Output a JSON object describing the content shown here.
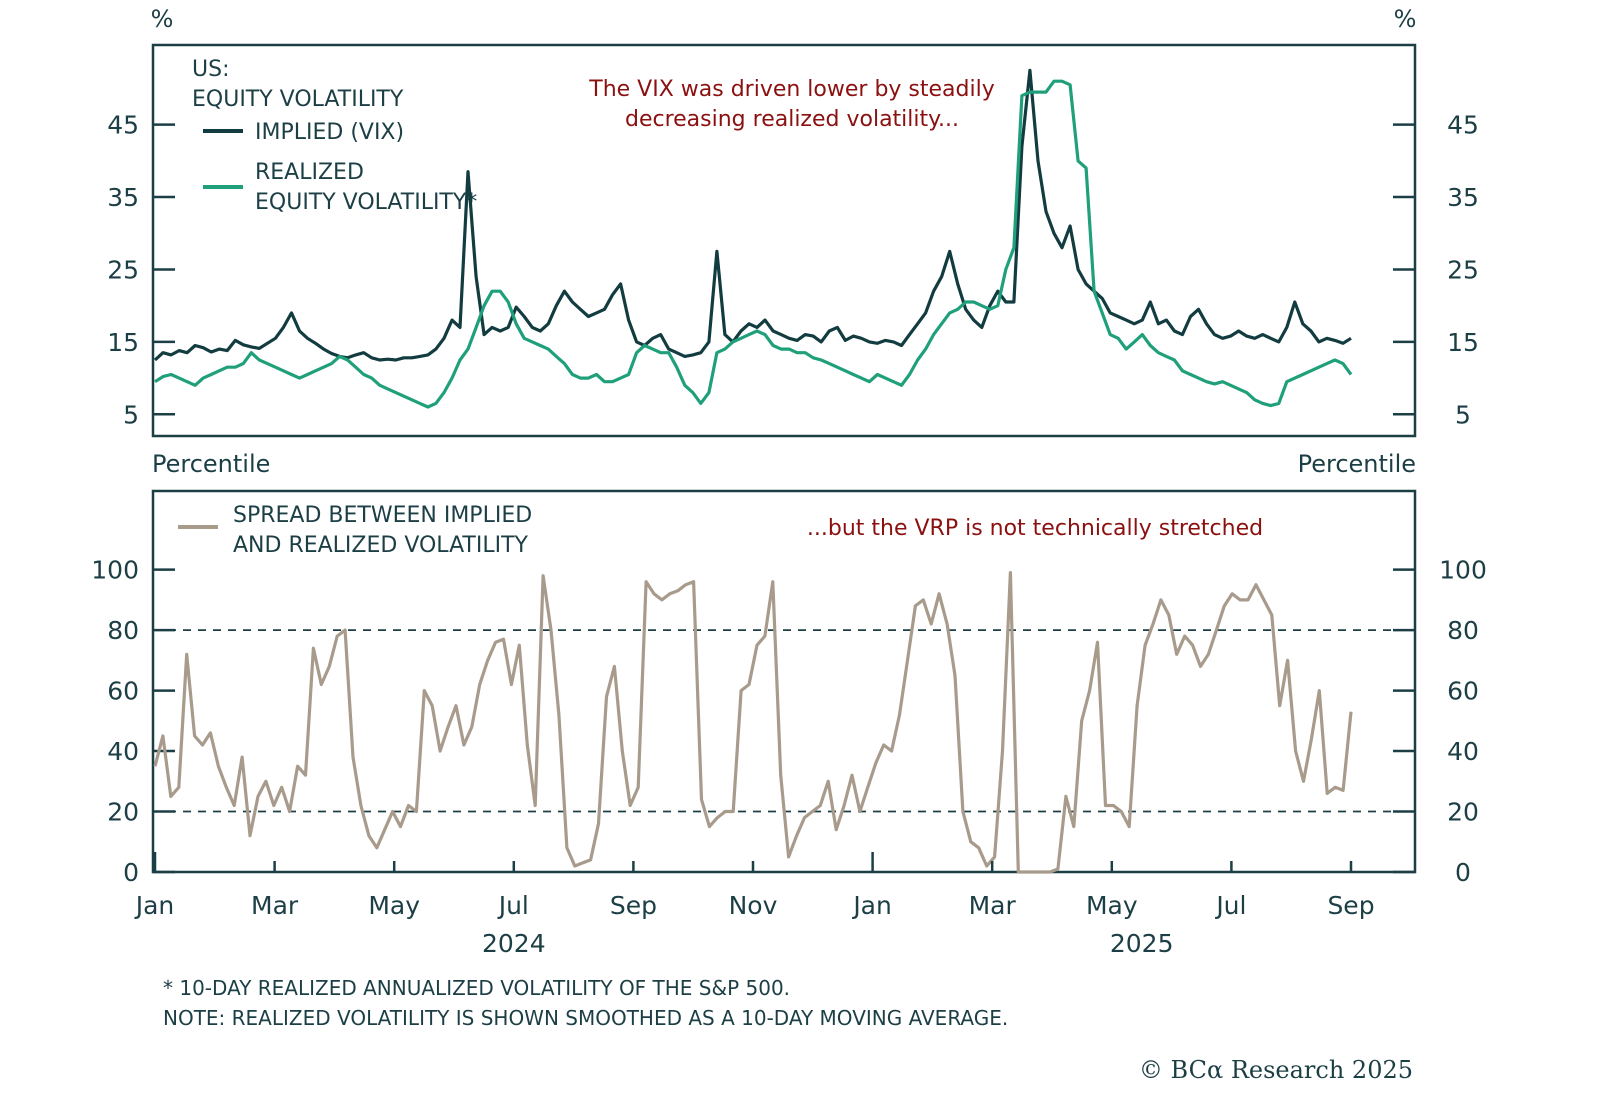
{
  "colors": {
    "axis": "#1c3f45",
    "implied": "#123c40",
    "realized": "#1fa07a",
    "spread": "#a89b8c",
    "annotation": "#8b1010"
  },
  "chart_data": [
    {
      "type": "line",
      "panel": "top",
      "title": "US: EQUITY VOLATILITY",
      "title_lines": [
        "US:",
        "EQUITY VOLATILITY"
      ],
      "ylabel_left": "%",
      "ylabel_right": "%",
      "ylim": [
        2,
        56
      ],
      "yticks": [
        5,
        15,
        25,
        35,
        45
      ],
      "ytick_labels": [
        "5",
        "15",
        "25",
        "35",
        "45"
      ],
      "annotation_lines": [
        "The VIX was driven lower by steadily",
        "decreasing realized volatility..."
      ],
      "x_unit": "months since Jan 2024 (0 = Jan 2024, 20 = Sep 2025)",
      "x_start": 0,
      "x_step": 0.25,
      "series": [
        {
          "name": "IMPLIED (VIX)",
          "legend_lines": [
            "IMPLIED (VIX)"
          ],
          "color_key": "implied",
          "values": [
            12.5,
            13.5,
            13.2,
            13.8,
            13.5,
            14.5,
            14.2,
            13.6,
            14.0,
            13.8,
            15.2,
            14.6,
            14.3,
            14.1,
            14.8,
            15.5,
            17.0,
            19.0,
            16.5,
            15.5,
            14.8,
            14.0,
            13.4,
            13.0,
            12.8,
            13.2,
            13.5,
            12.8,
            12.5,
            12.6,
            12.5,
            12.8,
            12.8,
            13.0,
            13.2,
            14.0,
            15.5,
            18.0,
            17.0,
            38.5,
            24.0,
            16.0,
            17.0,
            16.5,
            17.0,
            19.8,
            18.5,
            17.0,
            16.5,
            17.5,
            20.0,
            22.0,
            20.5,
            19.5,
            18.5,
            19.0,
            19.5,
            21.5,
            23.0,
            18.0,
            15.0,
            14.5,
            15.5,
            16.0,
            14.0,
            13.5,
            13.0,
            13.2,
            13.5,
            15.0,
            27.5,
            16.0,
            15.0,
            16.5,
            17.5,
            17.0,
            18.0,
            16.5,
            16.0,
            15.5,
            15.2,
            16.0,
            15.8,
            15.0,
            16.5,
            17.0,
            15.2,
            15.8,
            15.5,
            15.0,
            14.8,
            15.2,
            15.0,
            14.5,
            16.0,
            17.5,
            19.0,
            22.0,
            24.0,
            27.5,
            23.0,
            19.5,
            18.0,
            17.0,
            20.0,
            22.0,
            20.5,
            20.5,
            42.0,
            52.5,
            40.0,
            33.0,
            30.0,
            28.0,
            31.0,
            25.0,
            23.0,
            22.0,
            21.0,
            19.0,
            18.5,
            18.0,
            17.5,
            18.0,
            20.5,
            17.5,
            18.0,
            16.5,
            16.0,
            18.5,
            19.5,
            17.5,
            16.0,
            15.5,
            15.8,
            16.5,
            15.8,
            15.5,
            16.0,
            15.5,
            15.0,
            17.0,
            20.5,
            17.5,
            16.5,
            15.0,
            15.5,
            15.2,
            14.8,
            15.5
          ]
        },
        {
          "name": "REALIZED EQUITY VOLATILITY*",
          "legend_lines": [
            "REALIZED",
            "EQUITY VOLATILITY*"
          ],
          "color_key": "realized",
          "values": [
            9.5,
            10.2,
            10.5,
            10.0,
            9.5,
            9.0,
            10.0,
            10.5,
            11.0,
            11.5,
            11.5,
            12.0,
            13.5,
            12.5,
            12.0,
            11.5,
            11.0,
            10.5,
            10.0,
            10.5,
            11.0,
            11.5,
            12.0,
            13.0,
            12.5,
            11.5,
            10.5,
            10.0,
            9.0,
            8.5,
            8.0,
            7.5,
            7.0,
            6.5,
            6.0,
            6.5,
            8.0,
            10.0,
            12.5,
            14.0,
            17.0,
            20.0,
            22.0,
            22.0,
            20.5,
            17.5,
            15.5,
            15.0,
            14.5,
            14.0,
            13.0,
            12.0,
            10.5,
            10.0,
            10.0,
            10.5,
            9.5,
            9.5,
            10.0,
            10.5,
            13.5,
            14.5,
            14.0,
            13.5,
            13.5,
            11.5,
            9.0,
            8.0,
            6.5,
            8.0,
            13.5,
            14.0,
            15.0,
            15.5,
            16.0,
            16.5,
            16.0,
            14.5,
            14.0,
            14.0,
            13.5,
            13.5,
            12.8,
            12.5,
            12.0,
            11.5,
            11.0,
            10.5,
            10.0,
            9.5,
            10.5,
            10.0,
            9.5,
            9.0,
            10.5,
            12.5,
            14.0,
            16.0,
            17.5,
            19.0,
            19.5,
            20.5,
            20.5,
            20.0,
            19.5,
            20.0,
            25.0,
            28.0,
            49.0,
            49.5,
            49.5,
            49.5,
            51.0,
            51.0,
            50.5,
            40.0,
            39.0,
            22.0,
            19.0,
            16.0,
            15.5,
            14.0,
            15.0,
            16.0,
            14.5,
            13.5,
            13.0,
            12.5,
            11.0,
            10.5,
            10.0,
            9.5,
            9.2,
            9.5,
            9.0,
            8.5,
            8.0,
            7.0,
            6.5,
            6.2,
            6.5,
            9.5,
            10.0,
            10.5,
            11.0,
            11.5,
            12.0,
            12.5,
            12.0,
            10.5
          ]
        }
      ]
    },
    {
      "type": "line",
      "panel": "bottom",
      "ylabel_left": "Percentile",
      "ylabel_right": "Percentile",
      "ylim": [
        0,
        126
      ],
      "yticks": [
        0,
        20,
        40,
        60,
        80,
        100
      ],
      "ytick_labels": [
        "0",
        "20",
        "40",
        "60",
        "80",
        "100"
      ],
      "reference_lines": [
        20,
        80
      ],
      "annotation_lines": [
        "...but the VRP is not technically stretched"
      ],
      "xtick_labels": [
        "Jan",
        "Mar",
        "May",
        "Jul",
        "Sep",
        "Nov",
        "Jan",
        "Mar",
        "May",
        "Jul",
        "Sep"
      ],
      "xtick_months": [
        0,
        2,
        4,
        6,
        8,
        10,
        12,
        14,
        16,
        18,
        20
      ],
      "year_labels": [
        {
          "label": "2024",
          "month": 6
        },
        {
          "label": "2025",
          "month": 16.5
        }
      ],
      "x_unit": "months since Jan 2024",
      "x_start": 0,
      "x_step": 0.25,
      "series": [
        {
          "name": "SPREAD BETWEEN IMPLIED AND REALIZED VOLATILITY",
          "legend_lines": [
            "SPREAD BETWEEN IMPLIED",
            "AND REALIZED VOLATILITY"
          ],
          "color_key": "spread",
          "values": [
            35,
            45,
            25,
            28,
            72,
            45,
            42,
            46,
            35,
            28,
            22,
            38,
            12,
            25,
            30,
            22,
            28,
            20,
            35,
            32,
            74,
            62,
            68,
            78,
            80,
            38,
            22,
            12,
            8,
            14,
            20,
            15,
            22,
            20,
            60,
            55,
            40,
            48,
            55,
            42,
            48,
            62,
            70,
            76,
            77,
            62,
            75,
            42,
            22,
            98,
            80,
            52,
            8,
            2,
            3,
            4,
            16,
            58,
            68,
            40,
            22,
            28,
            96,
            92,
            90,
            92,
            93,
            95,
            96,
            24,
            15,
            18,
            20,
            20,
            60,
            62,
            75,
            78,
            96,
            32,
            5,
            12,
            18,
            20,
            22,
            30,
            14,
            22,
            32,
            20,
            28,
            36,
            42,
            40,
            52,
            70,
            88,
            90,
            82,
            92,
            82,
            65,
            20,
            10,
            8,
            2,
            5,
            40,
            99,
            0,
            0,
            0,
            0,
            0,
            1,
            25,
            15,
            50,
            60,
            76,
            22,
            22,
            20,
            15,
            55,
            75,
            82,
            90,
            85,
            72,
            78,
            75,
            68,
            72,
            80,
            88,
            92,
            90,
            90,
            95,
            90,
            85,
            55,
            70,
            40,
            30,
            44,
            60,
            26,
            28,
            27,
            53
          ]
        }
      ]
    }
  ],
  "footnotes": [
    "* 10-DAY REALIZED ANNUALIZED VOLATILITY OF THE S&P 500.",
    "NOTE: REALIZED VOLATILITY IS SHOWN SMOOTHED AS A 10-DAY MOVING AVERAGE."
  ],
  "credit": "© BCα Research 2025"
}
